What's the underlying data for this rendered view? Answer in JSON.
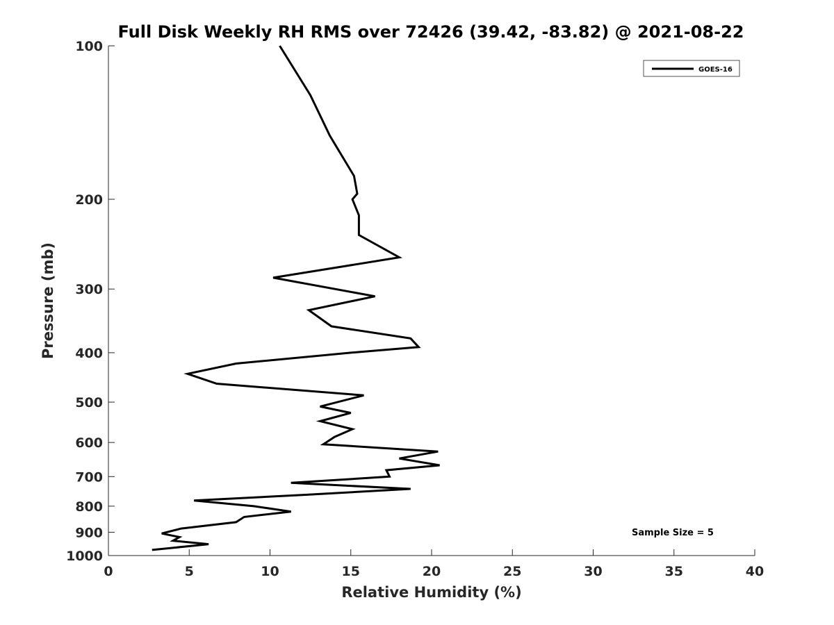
{
  "chart_data": {
    "type": "line",
    "title": "Full Disk Weekly RH RMS over 72426 (39.42, -83.82) @ 2021-08-22",
    "xlabel": "Relative Humidity (%)",
    "ylabel": "Pressure (mb)",
    "xlim": [
      0,
      40
    ],
    "ylim": [
      100,
      1000
    ],
    "y_scale": "log",
    "y_reversed": true,
    "x_ticks": [
      0,
      5,
      10,
      15,
      20,
      25,
      30,
      35,
      40
    ],
    "x_tick_labels": [
      "0",
      "5",
      "10",
      "15",
      "20",
      "25",
      "30",
      "35",
      "40"
    ],
    "y_ticks": [
      100,
      200,
      300,
      400,
      500,
      600,
      700,
      800,
      900,
      1000
    ],
    "y_tick_labels": [
      "100",
      "200",
      "300",
      "400",
      "500",
      "600",
      "700",
      "800",
      "900",
      "1000"
    ],
    "grid": false,
    "legend_position": "top-right",
    "annotation": "Sample Size = 5",
    "series": [
      {
        "name": "GOES-16",
        "color": "#000000",
        "x": [
          10.6,
          12.5,
          13.7,
          15.2,
          15.4,
          15.1,
          15.5,
          15.5,
          18.0,
          10.2,
          16.5,
          12.4,
          13.8,
          18.7,
          19.2,
          15.0,
          7.9,
          4.9,
          6.7,
          15.8,
          13.1,
          15.0,
          13.1,
          15.1,
          14.0,
          13.3,
          20.4,
          18.0,
          20.5,
          17.2,
          17.4,
          11.3,
          18.7,
          12.2,
          5.3,
          9.0,
          11.3,
          8.4,
          7.9,
          4.5,
          3.3,
          4.4,
          4.0,
          6.2,
          2.7
        ],
        "y": [
          100,
          125,
          150,
          180,
          195,
          200,
          215,
          235,
          260,
          285,
          310,
          330,
          355,
          375,
          390,
          400,
          420,
          440,
          460,
          485,
          510,
          525,
          545,
          565,
          585,
          605,
          625,
          645,
          665,
          680,
          700,
          720,
          740,
          760,
          780,
          800,
          820,
          840,
          860,
          885,
          905,
          920,
          935,
          950,
          975
        ]
      }
    ]
  }
}
